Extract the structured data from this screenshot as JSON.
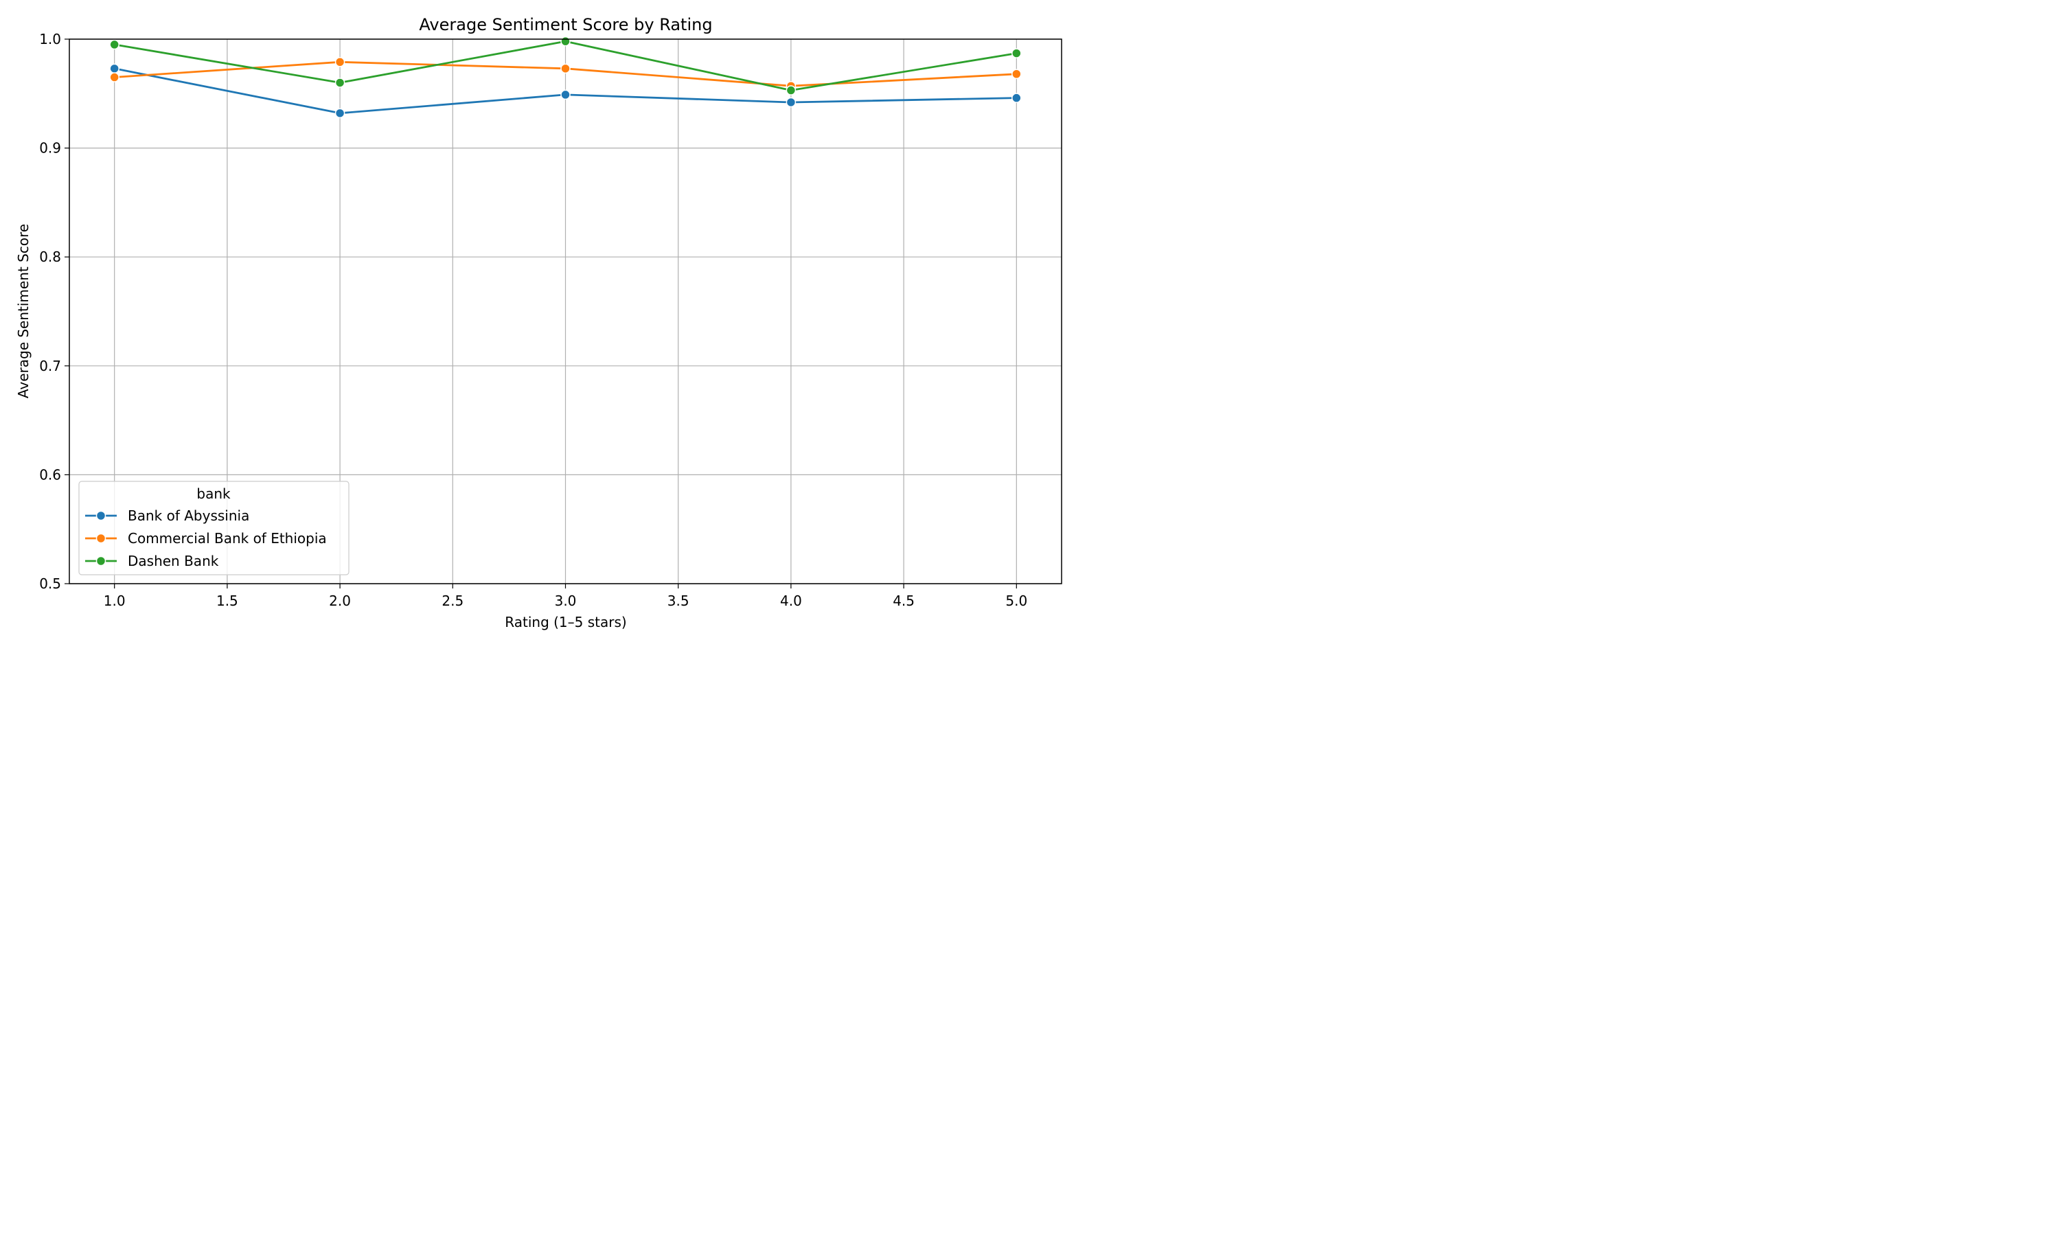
{
  "chart_data": {
    "type": "line",
    "title": "Average Sentiment Score by Rating",
    "xlabel": "Rating (1–5 stars)",
    "ylabel": "Average Sentiment Score",
    "xlim": [
      0.8,
      5.2
    ],
    "ylim": [
      0.5,
      1.0
    ],
    "x_ticks": [
      1.0,
      1.5,
      2.0,
      2.5,
      3.0,
      3.5,
      4.0,
      4.5,
      5.0
    ],
    "x_tick_labels": [
      "1.0",
      "1.5",
      "2.0",
      "2.5",
      "3.0",
      "3.5",
      "4.0",
      "4.5",
      "5.0"
    ],
    "y_ticks": [
      0.5,
      0.6,
      0.7,
      0.8,
      0.9,
      1.0
    ],
    "y_tick_labels": [
      "0.5",
      "0.6",
      "0.7",
      "0.8",
      "0.9",
      "1.0"
    ],
    "grid": true,
    "legend": {
      "title": "bank",
      "placement": "lower-left"
    },
    "x": [
      1,
      2,
      3,
      4,
      5
    ],
    "series": [
      {
        "name": "Bank of Abyssinia",
        "color": "#1f77b4",
        "values": [
          0.973,
          0.932,
          0.949,
          0.942,
          0.946
        ]
      },
      {
        "name": "Commercial Bank of Ethiopia",
        "color": "#ff7f0e",
        "values": [
          0.965,
          0.979,
          0.973,
          0.957,
          0.968
        ]
      },
      {
        "name": "Dashen Bank",
        "color": "#2ca02c",
        "values": [
          0.995,
          0.96,
          0.998,
          0.953,
          0.987
        ]
      }
    ]
  }
}
